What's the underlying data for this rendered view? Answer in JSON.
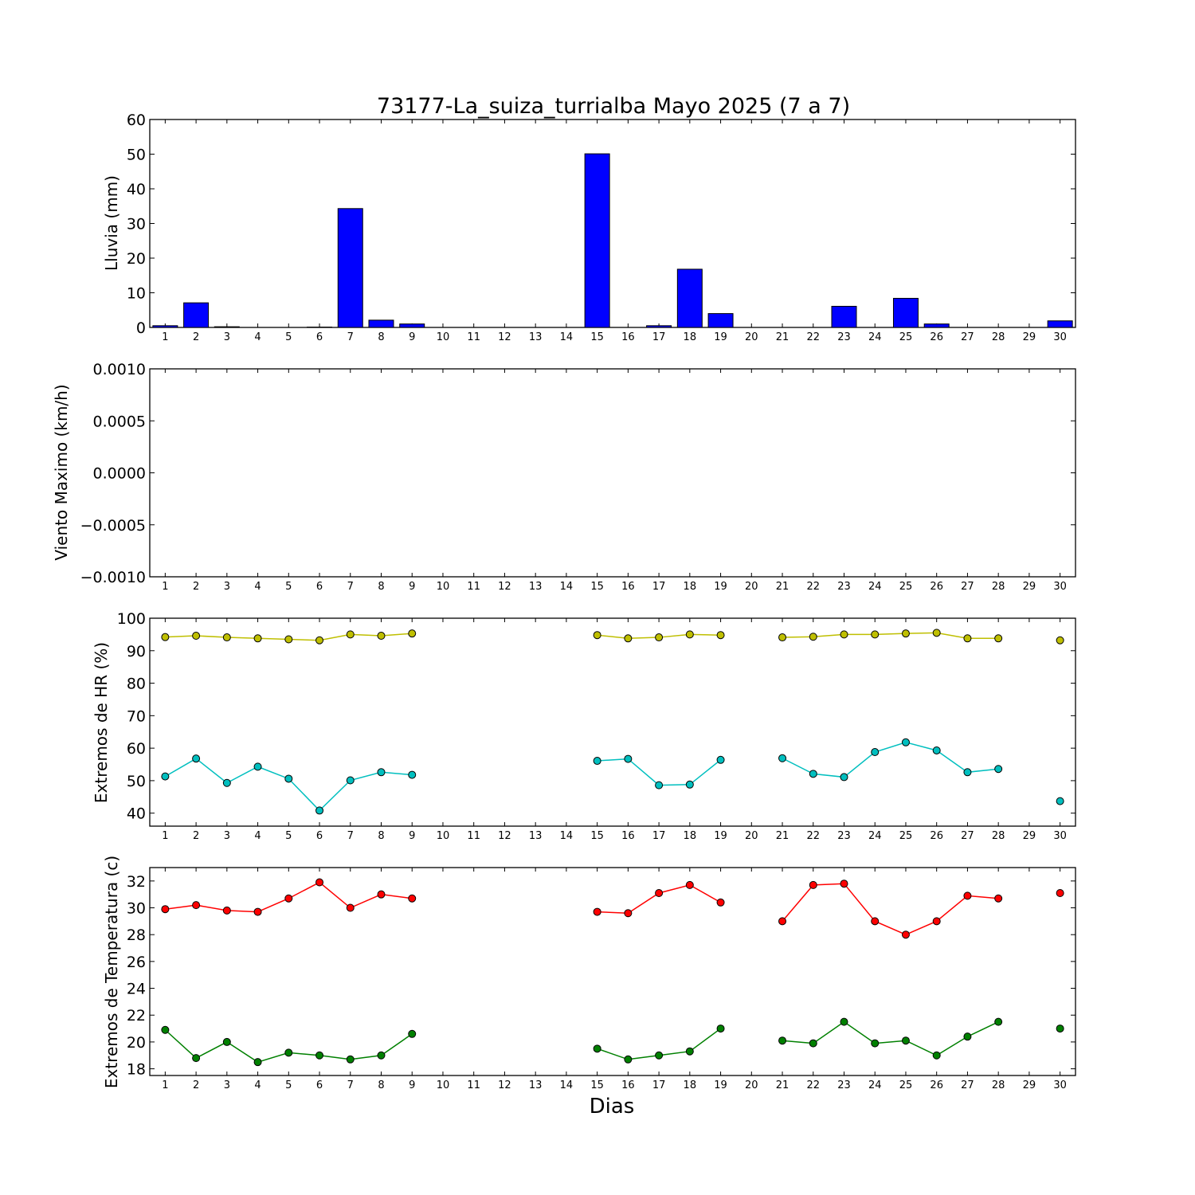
{
  "figure": {
    "title": "73177-La_suiza_turrialba Mayo 2025  (7 a 7)",
    "xlabel": "Dias"
  },
  "chart_data": [
    {
      "type": "bar",
      "ylabel": "Lluvia (mm)",
      "ylim": [
        0,
        60
      ],
      "yticks": [
        "0",
        "10",
        "20",
        "30",
        "40",
        "50",
        "60"
      ],
      "x_tick_labels": [
        "1",
        "2",
        "3",
        "4",
        "5",
        "6",
        "7",
        "8",
        "9",
        "10",
        "11",
        "12",
        "13",
        "14",
        "15",
        "16",
        "17",
        "18",
        "19",
        "20",
        "21",
        "22",
        "23",
        "24",
        "25",
        "26",
        "27",
        "28",
        "29",
        "30"
      ],
      "colors": {
        "bar": "#0000ff"
      },
      "categories": [
        1,
        2,
        3,
        4,
        5,
        6,
        7,
        8,
        9,
        10,
        11,
        12,
        13,
        14,
        15,
        16,
        17,
        18,
        19,
        20,
        21,
        22,
        23,
        24,
        25,
        26,
        27,
        28,
        29,
        30
      ],
      "values": [
        0.5,
        7.1,
        0.2,
        0.0,
        0.0,
        0.1,
        34.3,
        2.1,
        1.0,
        null,
        null,
        null,
        null,
        null,
        50.1,
        0.0,
        0.5,
        16.8,
        4.0,
        null,
        0.0,
        0.0,
        6.1,
        0.0,
        8.4,
        1.0,
        0.0,
        0.0,
        0.0,
        1.9
      ]
    },
    {
      "type": "line",
      "ylabel": "Viento Maximo (km/h)",
      "ylim": [
        -0.001,
        0.001
      ],
      "yticks": [
        "−0.0010",
        "−0.0005",
        "0.0000",
        "0.0005",
        "0.0010"
      ],
      "x_tick_labels": [
        "1",
        "2",
        "3",
        "4",
        "5",
        "6",
        "7",
        "8",
        "9",
        "10",
        "11",
        "12",
        "13",
        "14",
        "15",
        "16",
        "17",
        "18",
        "19",
        "20",
        "21",
        "22",
        "23",
        "24",
        "25",
        "26",
        "27",
        "28",
        "29",
        "30"
      ],
      "series": []
    },
    {
      "type": "line",
      "ylabel": "Extremos de HR (%)",
      "ylim": [
        36,
        100
      ],
      "yticks": [
        "40",
        "50",
        "60",
        "70",
        "80",
        "90",
        "100"
      ],
      "x_tick_labels": [
        "1",
        "2",
        "3",
        "4",
        "5",
        "6",
        "7",
        "8",
        "9",
        "10",
        "11",
        "12",
        "13",
        "14",
        "15",
        "16",
        "17",
        "18",
        "19",
        "20",
        "21",
        "22",
        "23",
        "24",
        "25",
        "26",
        "27",
        "28",
        "29",
        "30"
      ],
      "x": [
        1,
        2,
        3,
        4,
        5,
        6,
        7,
        8,
        9,
        10,
        11,
        12,
        13,
        14,
        15,
        16,
        17,
        18,
        19,
        20,
        21,
        22,
        23,
        24,
        25,
        26,
        27,
        28,
        29,
        30
      ],
      "series": [
        {
          "color": "#bfbf00",
          "values": [
            94.2,
            94.6,
            94.1,
            93.8,
            93.5,
            93.2,
            95.0,
            94.6,
            95.3,
            null,
            null,
            null,
            null,
            null,
            94.8,
            93.8,
            94.1,
            95.0,
            94.8,
            null,
            94.1,
            94.3,
            95.0,
            95.0,
            95.3,
            95.5,
            93.8,
            93.8,
            null,
            93.2
          ]
        },
        {
          "color": "#00bfbf",
          "values": [
            51.3,
            56.8,
            49.3,
            54.3,
            50.6,
            40.8,
            50.1,
            52.6,
            51.8,
            null,
            null,
            null,
            null,
            null,
            56.1,
            56.7,
            48.6,
            48.8,
            56.4,
            null,
            56.9,
            52.1,
            51.1,
            58.8,
            61.8,
            59.3,
            52.6,
            53.6,
            null,
            43.7
          ]
        }
      ]
    },
    {
      "type": "line",
      "ylabel": "Extremos de Temperatura (c)",
      "ylim": [
        17.5,
        33
      ],
      "yticks": [
        "18",
        "20",
        "22",
        "24",
        "26",
        "28",
        "30",
        "32"
      ],
      "x_tick_labels": [
        "1",
        "2",
        "3",
        "4",
        "5",
        "6",
        "7",
        "8",
        "9",
        "10",
        "11",
        "12",
        "13",
        "14",
        "15",
        "16",
        "17",
        "18",
        "19",
        "20",
        "21",
        "22",
        "23",
        "24",
        "25",
        "26",
        "27",
        "28",
        "29",
        "30"
      ],
      "x": [
        1,
        2,
        3,
        4,
        5,
        6,
        7,
        8,
        9,
        10,
        11,
        12,
        13,
        14,
        15,
        16,
        17,
        18,
        19,
        20,
        21,
        22,
        23,
        24,
        25,
        26,
        27,
        28,
        29,
        30
      ],
      "series": [
        {
          "color": "#ff0000",
          "values": [
            29.9,
            30.2,
            29.8,
            29.7,
            30.7,
            31.9,
            30.0,
            31.0,
            30.7,
            null,
            null,
            null,
            null,
            null,
            29.7,
            29.6,
            31.1,
            31.7,
            30.4,
            null,
            29.0,
            31.7,
            31.8,
            29.0,
            28.0,
            29.0,
            30.9,
            30.7,
            null,
            31.1
          ]
        },
        {
          "color": "#008000",
          "values": [
            20.9,
            18.8,
            20.0,
            18.5,
            19.2,
            19.0,
            18.7,
            19.0,
            20.6,
            null,
            null,
            null,
            null,
            null,
            19.5,
            18.7,
            19.0,
            19.3,
            21.0,
            null,
            20.1,
            19.9,
            21.5,
            19.9,
            20.1,
            19.0,
            20.4,
            21.5,
            null,
            21.0
          ]
        }
      ]
    }
  ]
}
